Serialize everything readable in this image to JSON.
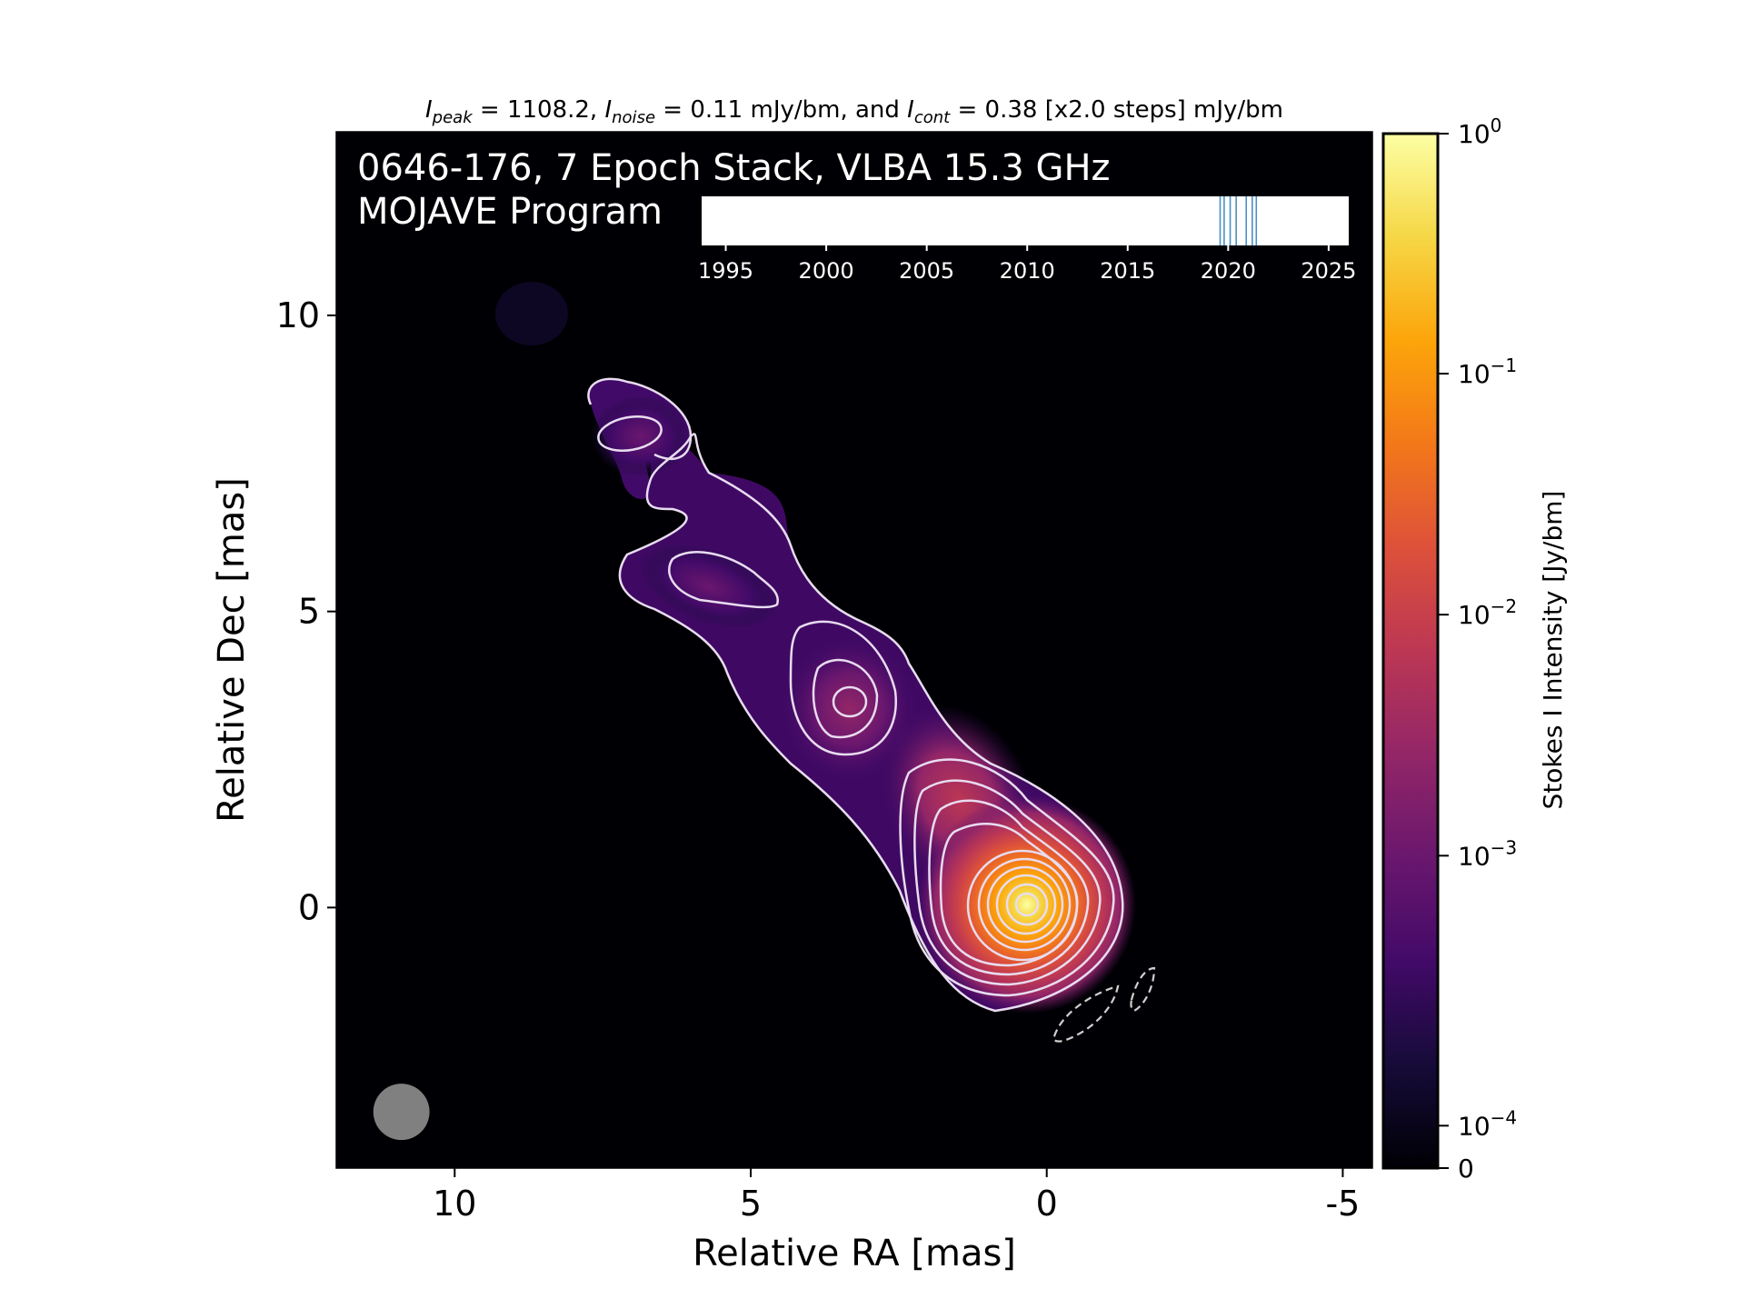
{
  "chart_data": {
    "type": "heatmap",
    "title_parts": {
      "i1": "I",
      "s1": "peak",
      "t1": " = 1108.2, ",
      "i2": "I",
      "s2": "noise",
      "t2": " = 0.11 mJy/bm, and ",
      "i3": "I",
      "s3": "cont",
      "t3": " = 0.38 [x2.0 steps] mJy/bm"
    },
    "overlay_title_1": "0646-176, 7 Epoch Stack, VLBA 15.3 GHz",
    "overlay_title_2": "MOJAVE Program",
    "xlabel": "Relative RA [mas]",
    "ylabel": "Relative Dec [mas]",
    "xlim": [
      12.0,
      -5.5
    ],
    "ylim": [
      -4.4,
      13.1
    ],
    "x_ticks": [
      {
        "v": 10,
        "label": "10"
      },
      {
        "v": 5,
        "label": "5"
      },
      {
        "v": 0,
        "label": "0"
      },
      {
        "v": -5,
        "label": "-5"
      }
    ],
    "y_ticks": [
      {
        "v": 10,
        "label": "10"
      },
      {
        "v": 5,
        "label": "5"
      },
      {
        "v": 0,
        "label": "0"
      }
    ],
    "colormap": "inferno",
    "colorbar": {
      "label": "Stokes I Intensity [Jy/bm]",
      "scale": "log",
      "ticks": [
        {
          "frac": 0.0,
          "base": "0",
          "exp": ""
        },
        {
          "frac": 0.041,
          "base": "10",
          "exp": "−4"
        },
        {
          "frac": 0.302,
          "base": "10",
          "exp": "−3"
        },
        {
          "frac": 0.535,
          "base": "10",
          "exp": "−2"
        },
        {
          "frac": 0.768,
          "base": "10",
          "exp": "−1"
        },
        {
          "frac": 1.0,
          "base": "10",
          "exp": "0"
        }
      ]
    },
    "components": [
      {
        "x": 0.0,
        "y": 0.0,
        "level": 1.0
      },
      {
        "x": 1.2,
        "y": 1.8,
        "level": 0.55
      },
      {
        "x": 3.0,
        "y": 3.3,
        "level": 0.42
      },
      {
        "x": 5.5,
        "y": 5.5,
        "level": 0.3
      },
      {
        "x": 6.9,
        "y": 7.9,
        "level": 0.3
      }
    ],
    "beam": {
      "x": 10.9,
      "y": -3.45,
      "major": 0.95,
      "minor": 0.95
    },
    "epoch_axis": {
      "xlim": [
        1993.8,
        2026.0
      ],
      "ticks": [
        "1995",
        "2000",
        "2005",
        "2010",
        "2015",
        "2020",
        "2025"
      ],
      "epochs": [
        2019.6,
        2019.8,
        2020.1,
        2020.4,
        2020.9,
        2021.2,
        2021.4
      ]
    }
  }
}
